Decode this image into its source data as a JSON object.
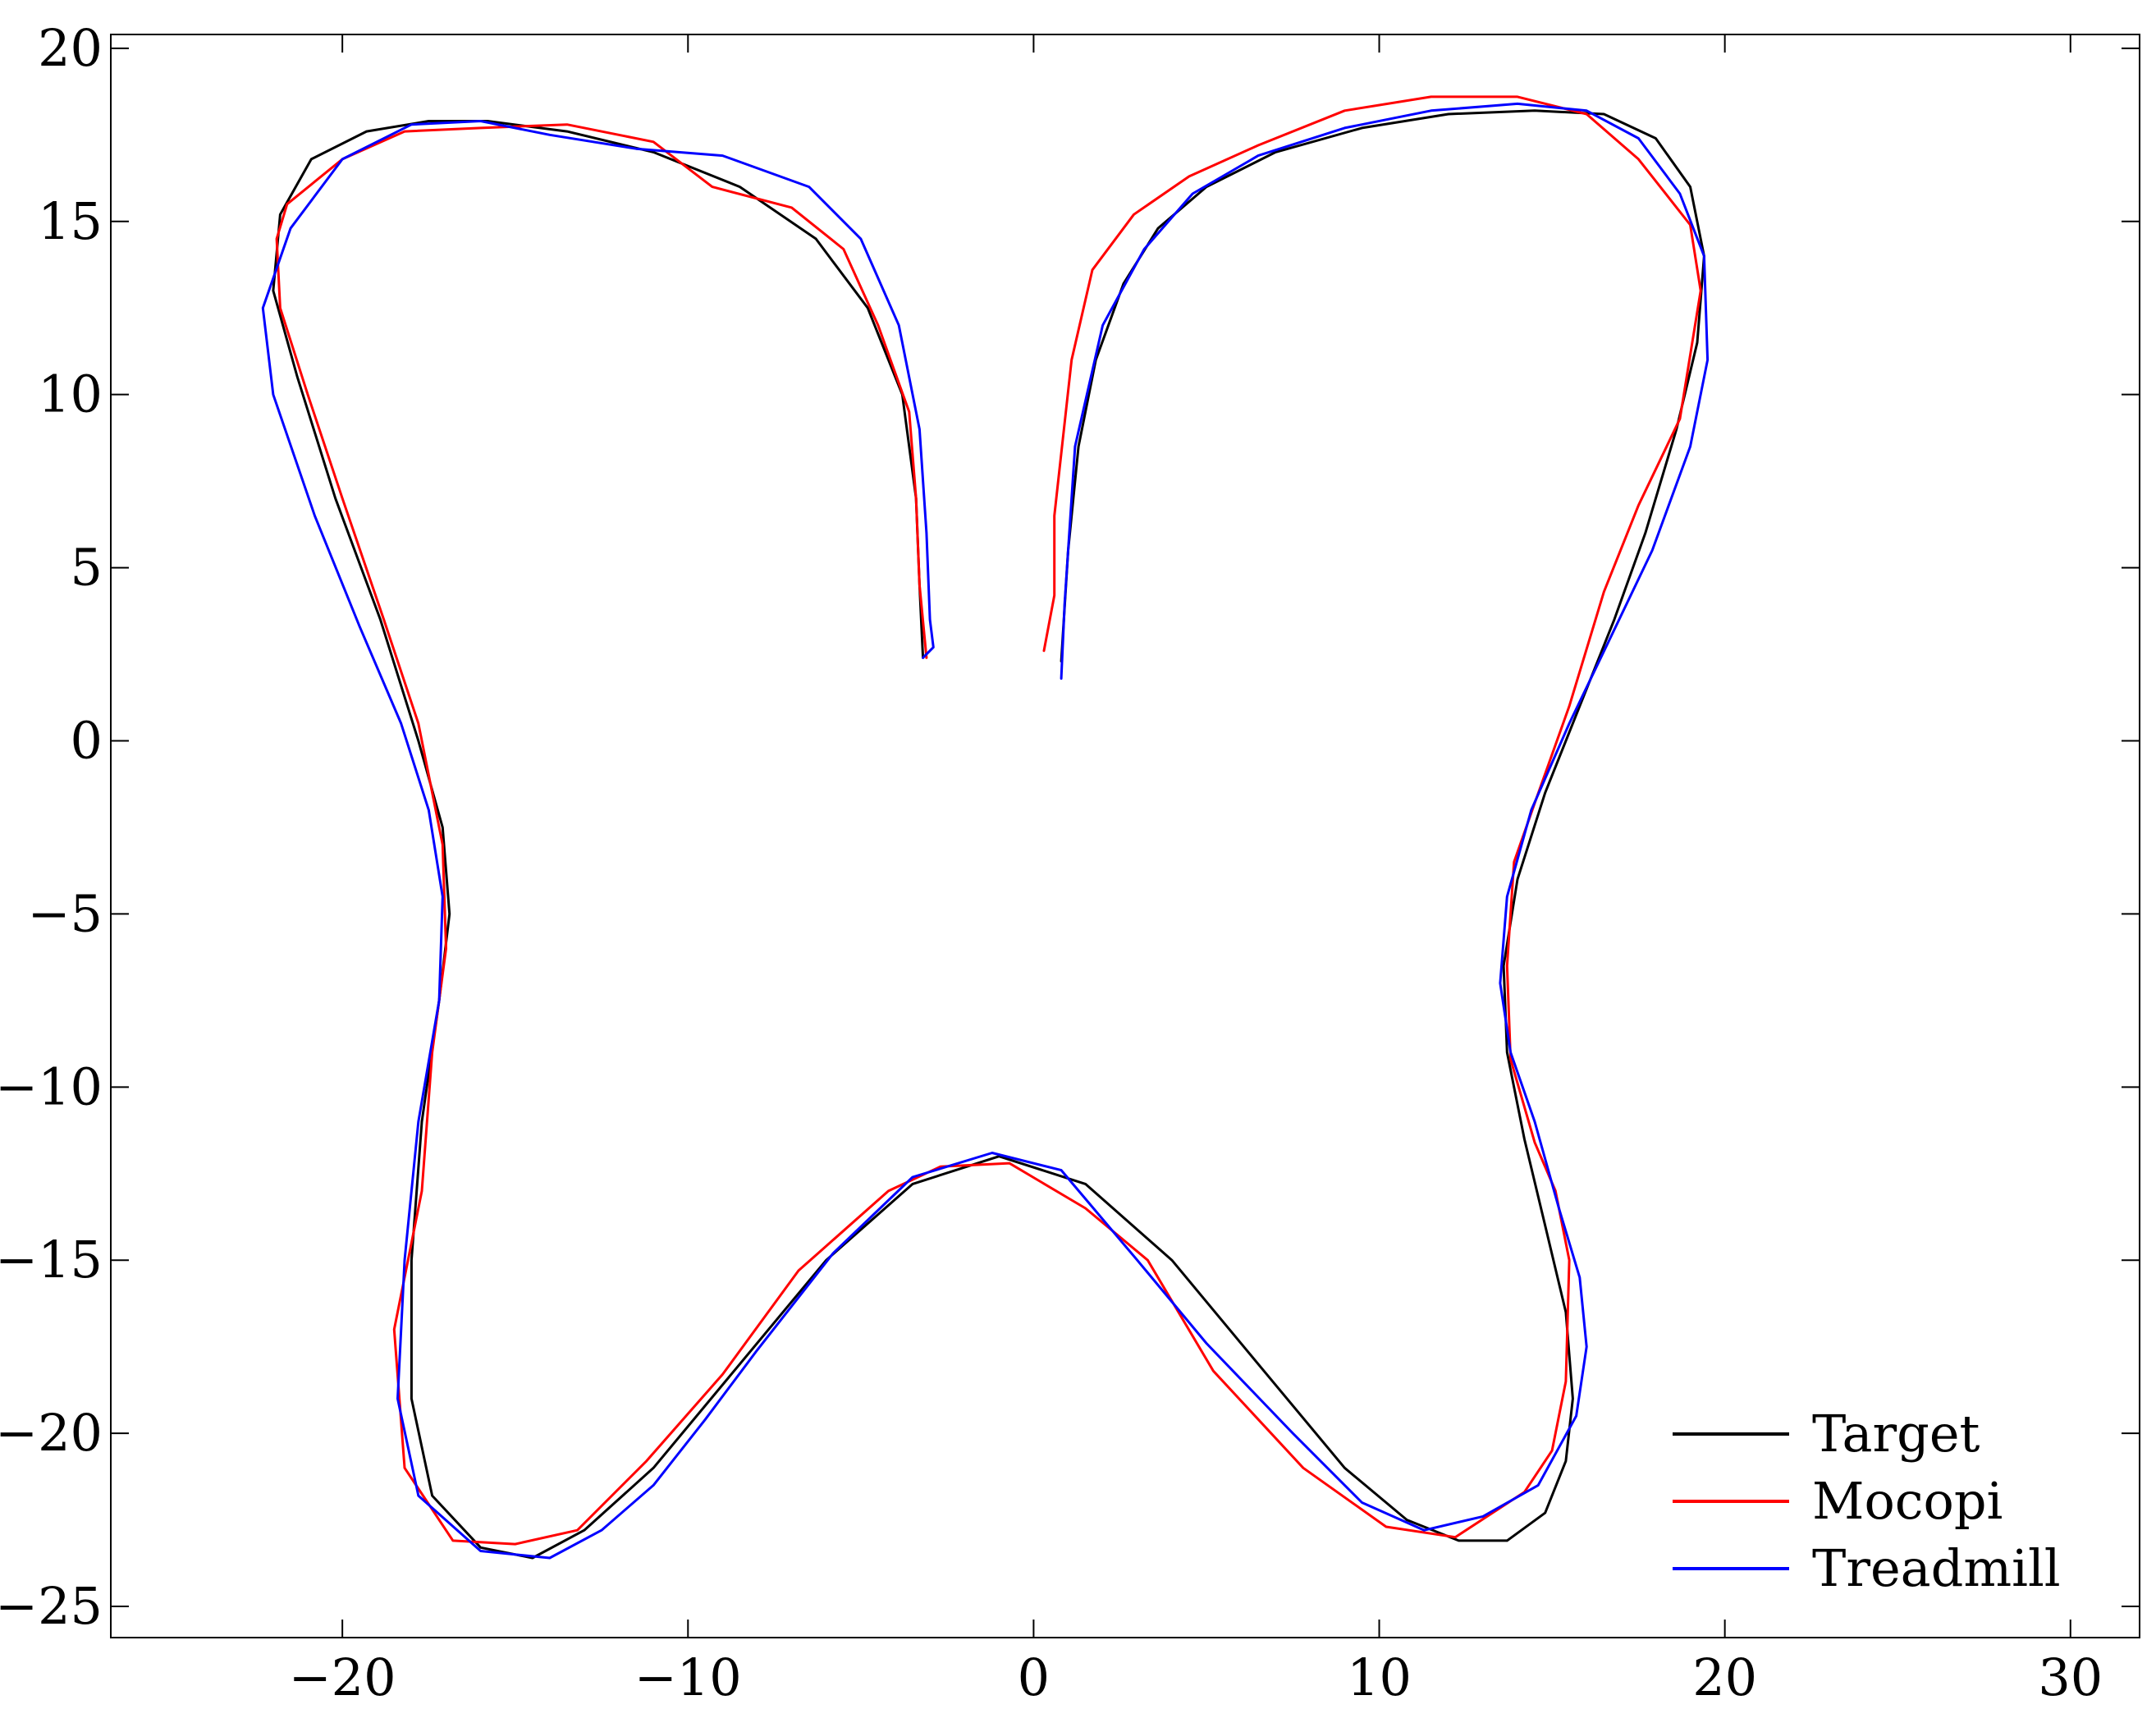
{
  "chart_data": {
    "type": "line",
    "title": "",
    "xlabel": "",
    "ylabel": "",
    "xlim": [
      -26.7,
      32
    ],
    "ylim": [
      -25.9,
      20.4
    ],
    "x_ticks": [
      -20,
      -10,
      0,
      10,
      20,
      30
    ],
    "y_ticks": [
      20,
      15,
      10,
      5,
      0,
      -5,
      -10,
      -15,
      -20,
      -25
    ],
    "x_tick_labels": [
      "−20",
      "−10",
      "0",
      "10",
      "20",
      "30"
    ],
    "y_tick_labels": [
      "20",
      "15",
      "10",
      "5",
      "0",
      "−5",
      "−10",
      "−15",
      "−20",
      "−25"
    ],
    "grid": false,
    "legend_position": "bottom-right",
    "series": [
      {
        "name": "Target",
        "color": "#000000",
        "x": [
          0.8,
          1.0,
          1.3,
          1.8,
          2.6,
          3.6,
          5.0,
          7.0,
          9.5,
          12.0,
          14.5,
          16.5,
          18.0,
          19.0,
          19.4,
          19.2,
          18.6,
          17.7,
          16.8,
          15.8,
          14.8,
          14.0,
          13.6,
          13.7,
          14.2,
          14.8,
          15.4,
          15.6,
          15.4,
          14.8,
          13.7,
          12.3,
          10.8,
          9.0,
          6.5,
          4.0,
          1.5,
          -1.0,
          -3.5,
          -6.0,
          -8.5,
          -11.0,
          -13.0,
          -14.5,
          -16.0,
          -17.4,
          -18.0,
          -18.0,
          -17.7,
          -17.2,
          -16.9,
          -17.1,
          -17.8,
          -18.9,
          -20.2,
          -21.3,
          -22.0,
          -21.8,
          -20.9,
          -19.3,
          -17.5,
          -15.8,
          -13.5,
          -11.0,
          -8.5,
          -6.3,
          -4.8,
          -3.8,
          -3.4,
          -3.3,
          -3.2
        ],
        "y": [
          2.3,
          5.5,
          8.5,
          11.0,
          13.2,
          14.8,
          16.0,
          17.0,
          17.7,
          18.1,
          18.2,
          18.1,
          17.4,
          16.0,
          14.0,
          11.5,
          9.0,
          6.0,
          3.5,
          1.0,
          -1.5,
          -4.0,
          -6.5,
          -9.0,
          -11.5,
          -14.0,
          -16.5,
          -19.0,
          -20.8,
          -22.3,
          -23.1,
          -23.1,
          -22.5,
          -21.0,
          -18.0,
          -15.0,
          -12.8,
          -12.0,
          -12.8,
          -15.0,
          -18.0,
          -21.0,
          -22.8,
          -23.6,
          -23.3,
          -21.8,
          -19.0,
          -15.0,
          -11.0,
          -7.5,
          -5.0,
          -2.5,
          0.0,
          3.5,
          7.0,
          10.5,
          13.0,
          15.2,
          16.8,
          17.6,
          17.9,
          17.9,
          17.6,
          17.0,
          16.0,
          14.5,
          12.5,
          10.0,
          7.0,
          4.5,
          2.4
        ]
      },
      {
        "name": "Mocopi",
        "color": "#ff0000",
        "x": [
          0.3,
          0.6,
          0.6,
          1.1,
          1.7,
          2.9,
          4.5,
          6.5,
          9.0,
          11.5,
          14.0,
          16.0,
          17.5,
          19.0,
          19.3,
          18.7,
          17.5,
          16.5,
          15.5,
          14.5,
          13.9,
          13.7,
          13.8,
          14.5,
          15.1,
          15.5,
          15.4,
          15.0,
          14.2,
          12.2,
          10.2,
          7.8,
          5.2,
          3.3,
          1.5,
          -0.7,
          -2.7,
          -4.2,
          -6.8,
          -9.0,
          -11.2,
          -13.2,
          -15.0,
          -16.8,
          -18.2,
          -18.5,
          -17.7,
          -17.4,
          -17.0,
          -17.1,
          -17.8,
          -18.8,
          -20.0,
          -21.0,
          -21.8,
          -21.9,
          -21.6,
          -20.0,
          -18.2,
          -16.0,
          -13.5,
          -11.0,
          -9.3,
          -7.0,
          -5.5,
          -4.5,
          -3.6,
          -3.4,
          -3.3,
          -3.1
        ],
        "y": [
          2.6,
          4.2,
          6.5,
          11.0,
          13.6,
          15.2,
          16.3,
          17.2,
          18.2,
          18.6,
          18.6,
          18.1,
          16.8,
          14.9,
          13.0,
          9.3,
          6.8,
          4.3,
          1.0,
          -1.8,
          -3.5,
          -6.5,
          -9.2,
          -11.6,
          -13.0,
          -15.0,
          -18.5,
          -20.5,
          -21.7,
          -23.0,
          -22.7,
          -21.0,
          -18.2,
          -15.0,
          -13.5,
          -12.2,
          -12.3,
          -13.0,
          -15.3,
          -18.3,
          -20.8,
          -22.8,
          -23.2,
          -23.1,
          -21.0,
          -17.0,
          -13.0,
          -9.0,
          -6.0,
          -3.0,
          0.5,
          3.5,
          7.0,
          10.0,
          12.5,
          14.5,
          15.5,
          16.8,
          17.6,
          17.7,
          17.8,
          17.3,
          16.0,
          15.4,
          14.2,
          12.0,
          9.5,
          7.0,
          4.5,
          2.4
        ]
      },
      {
        "name": "Treadmill",
        "color": "#0000ff",
        "x": [
          0.8,
          0.9,
          1.2,
          2.0,
          3.2,
          4.6,
          6.5,
          9.0,
          11.5,
          14.0,
          16.0,
          17.5,
          18.7,
          19.4,
          19.5,
          19.0,
          17.9,
          16.7,
          15.5,
          14.4,
          13.7,
          13.5,
          13.8,
          14.5,
          15.2,
          15.8,
          16.0,
          15.7,
          14.6,
          13.0,
          11.3,
          9.5,
          7.5,
          5.0,
          3.0,
          0.8,
          -1.2,
          -3.5,
          -5.8,
          -8.0,
          -9.5,
          -11.0,
          -12.5,
          -14.0,
          -16.0,
          -17.8,
          -18.4,
          -18.2,
          -17.8,
          -17.2,
          -17.1,
          -17.5,
          -18.3,
          -19.5,
          -20.8,
          -22.0,
          -22.3,
          -21.5,
          -20.0,
          -18.0,
          -16.0,
          -14.0,
          -11.5,
          -9.0,
          -6.5,
          -5.0,
          -3.9,
          -3.3,
          -3.1,
          -3.0,
          -2.9,
          -3.2
        ],
        "y": [
          1.8,
          4.0,
          8.5,
          12.0,
          14.2,
          15.8,
          16.9,
          17.7,
          18.2,
          18.4,
          18.2,
          17.4,
          15.8,
          14.0,
          11.0,
          8.5,
          5.5,
          3.0,
          0.5,
          -2.0,
          -4.5,
          -7.0,
          -9.0,
          -11.0,
          -13.5,
          -15.5,
          -17.5,
          -19.5,
          -21.5,
          -22.4,
          -22.8,
          -22.0,
          -20.0,
          -17.4,
          -15.0,
          -12.4,
          -11.9,
          -12.6,
          -14.8,
          -17.6,
          -19.6,
          -21.5,
          -22.8,
          -23.6,
          -23.4,
          -21.8,
          -19.0,
          -15.0,
          -11.0,
          -7.5,
          -4.5,
          -2.0,
          0.5,
          3.3,
          6.5,
          10.0,
          12.5,
          14.8,
          16.8,
          17.8,
          17.9,
          17.5,
          17.1,
          16.9,
          16.0,
          14.5,
          12.0,
          9.0,
          6.0,
          3.5,
          2.7,
          2.4
        ]
      }
    ]
  }
}
